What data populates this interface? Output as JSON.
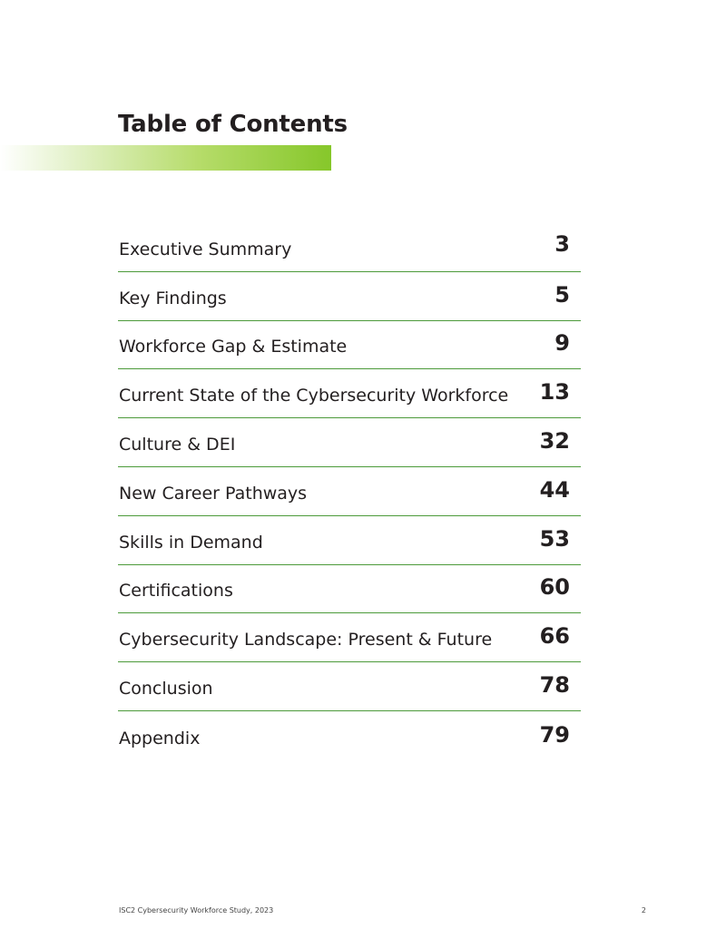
{
  "document": {
    "title": "Table of Contents",
    "accent_color": "#86c72a",
    "divider_color": "#4c9a3a"
  },
  "toc": {
    "entries": [
      {
        "label": "Executive Summary",
        "page": "3"
      },
      {
        "label": "Key Findings",
        "page": "5"
      },
      {
        "label": "Workforce Gap & Estimate",
        "page": "9"
      },
      {
        "label": "Current State of the Cybersecurity Workforce",
        "page": "13"
      },
      {
        "label": "Culture & DEI",
        "page": "32"
      },
      {
        "label": "New Career Pathways",
        "page": "44"
      },
      {
        "label": "Skills in Demand",
        "page": "53"
      },
      {
        "label": "Certifications",
        "page": "60"
      },
      {
        "label": "Cybersecurity Landscape: Present & Future",
        "page": "66"
      },
      {
        "label": "Conclusion",
        "page": "78"
      },
      {
        "label": "Appendix",
        "page": "79"
      }
    ]
  },
  "footer": {
    "publication": "ISC2 Cybersecurity Workforce Study, 2023",
    "page_number": "2"
  }
}
